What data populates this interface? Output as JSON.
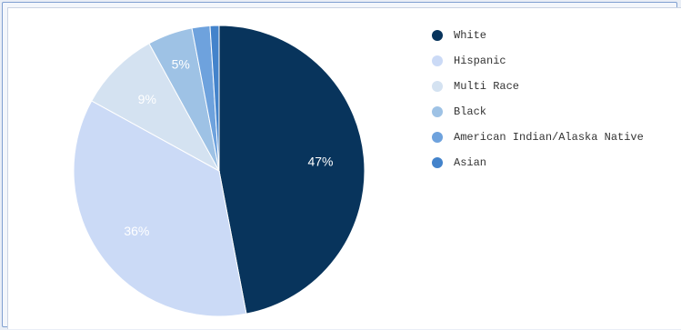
{
  "chart_data": {
    "type": "pie",
    "title": "",
    "slices": [
      {
        "label": "White",
        "value": 47,
        "value_label": "47%",
        "color": "#08345c",
        "label_color": "#ffffff"
      },
      {
        "label": "Hispanic",
        "value": 36,
        "value_label": "36%",
        "color": "#cbdaf6",
        "label_color": "#ffffff"
      },
      {
        "label": "Multi Race",
        "value": 9,
        "value_label": "9%",
        "color": "#d4e2f1",
        "label_color": "#ffffff"
      },
      {
        "label": "Black",
        "value": 5,
        "value_label": "5%",
        "color": "#9ec2e5",
        "label_color": "#ffffff"
      },
      {
        "label": "American Indian/Alaska Native",
        "value": 2,
        "value_label": "",
        "color": "#6ea2dd",
        "label_color": "#ffffff"
      },
      {
        "label": "Asian",
        "value": 1,
        "value_label": "",
        "color": "#4383cb",
        "label_color": "#ffffff"
      }
    ],
    "legend": {
      "position": "right"
    }
  }
}
